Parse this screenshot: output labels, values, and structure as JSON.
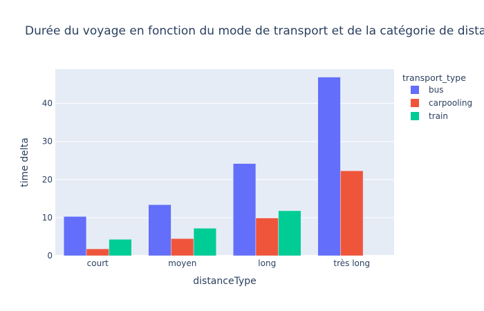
{
  "chart_data": {
    "type": "bar",
    "title": "Durée du voyage en fonction du mode de transport et de la catégorie de distance",
    "xlabel": "distanceType",
    "ylabel": "time delta",
    "categories": [
      "court",
      "moyen",
      "long",
      "très long"
    ],
    "ylim": [
      0,
      49
    ],
    "yticks": [
      0,
      10,
      20,
      30,
      40
    ],
    "grid": true,
    "legend_title": "transport_type",
    "legend_position": "right",
    "plot_background": "#e5ecf6",
    "series": [
      {
        "name": "bus",
        "color": "#636efa",
        "values": [
          10.3,
          13.4,
          24.2,
          46.9
        ]
      },
      {
        "name": "carpooling",
        "color": "#ef553b",
        "values": [
          1.8,
          4.5,
          9.9,
          22.3
        ]
      },
      {
        "name": "train",
        "color": "#00cc96",
        "values": [
          4.3,
          7.2,
          11.8,
          null
        ]
      }
    ]
  }
}
